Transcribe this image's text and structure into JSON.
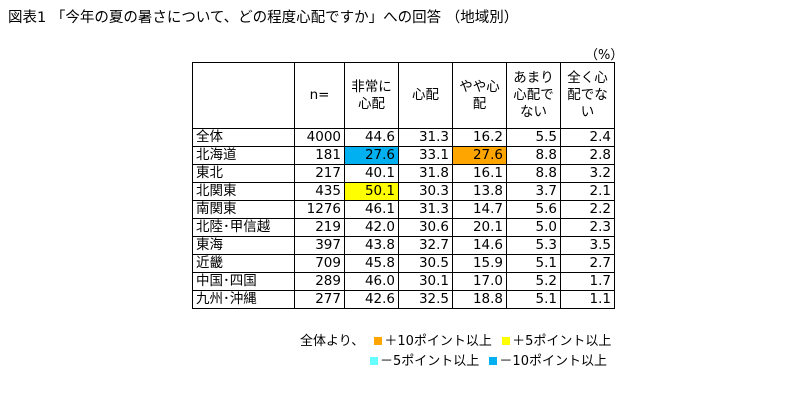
{
  "title": "図表1 「今年の夏の暑さについて、どの程度心配ですか」への回答 （地域別）",
  "unit": "（%）",
  "colors": {
    "plus10": "#FFA500",
    "plus5": "#FFFF00",
    "minus5": "#66FFFF",
    "minus10": "#00B0F0"
  },
  "headers": [
    "",
    "n=",
    "非常に心配",
    "心配",
    "やや心配",
    "あまり心配でない",
    "全く心配でない"
  ],
  "rows": [
    {
      "label": "全体",
      "cells": [
        "4000",
        "44.6",
        "31.3",
        "16.2",
        "5.5",
        "2.4"
      ],
      "hl": [
        "",
        "",
        "",
        "",
        "",
        ""
      ]
    },
    {
      "label": "北海道",
      "cells": [
        "181",
        "27.6",
        "33.1",
        "27.6",
        "8.8",
        "2.8"
      ],
      "hl": [
        "",
        "minus10",
        "",
        "plus10",
        "",
        ""
      ]
    },
    {
      "label": "東北",
      "cells": [
        "217",
        "40.1",
        "31.8",
        "16.1",
        "8.8",
        "3.2"
      ],
      "hl": [
        "",
        "",
        "",
        "",
        "",
        ""
      ]
    },
    {
      "label": "北関東",
      "cells": [
        "435",
        "50.1",
        "30.3",
        "13.8",
        "3.7",
        "2.1"
      ],
      "hl": [
        "",
        "plus5",
        "",
        "",
        "",
        ""
      ]
    },
    {
      "label": "南関東",
      "cells": [
        "1276",
        "46.1",
        "31.3",
        "14.7",
        "5.6",
        "2.2"
      ],
      "hl": [
        "",
        "",
        "",
        "",
        "",
        ""
      ]
    },
    {
      "label": "北陸･甲信越",
      "cells": [
        "219",
        "42.0",
        "30.6",
        "20.1",
        "5.0",
        "2.3"
      ],
      "hl": [
        "",
        "",
        "",
        "",
        "",
        ""
      ]
    },
    {
      "label": "東海",
      "cells": [
        "397",
        "43.8",
        "32.7",
        "14.6",
        "5.3",
        "3.5"
      ],
      "hl": [
        "",
        "",
        "",
        "",
        "",
        ""
      ]
    },
    {
      "label": "近畿",
      "cells": [
        "709",
        "45.8",
        "30.5",
        "15.9",
        "5.1",
        "2.7"
      ],
      "hl": [
        "",
        "",
        "",
        "",
        "",
        ""
      ]
    },
    {
      "label": "中国･四国",
      "cells": [
        "289",
        "46.0",
        "30.1",
        "17.0",
        "5.2",
        "1.7"
      ],
      "hl": [
        "",
        "",
        "",
        "",
        "",
        ""
      ]
    },
    {
      "label": "九州･沖縄",
      "cells": [
        "277",
        "42.6",
        "32.5",
        "18.8",
        "5.1",
        "1.1"
      ],
      "hl": [
        "",
        "",
        "",
        "",
        "",
        ""
      ]
    }
  ],
  "legend": {
    "prefix": "全体より、",
    "plus10": "＋10ポイント以上",
    "plus5": "＋5ポイント以上",
    "minus5": "－5ポイント以上",
    "minus10": "－10ポイント以上"
  }
}
